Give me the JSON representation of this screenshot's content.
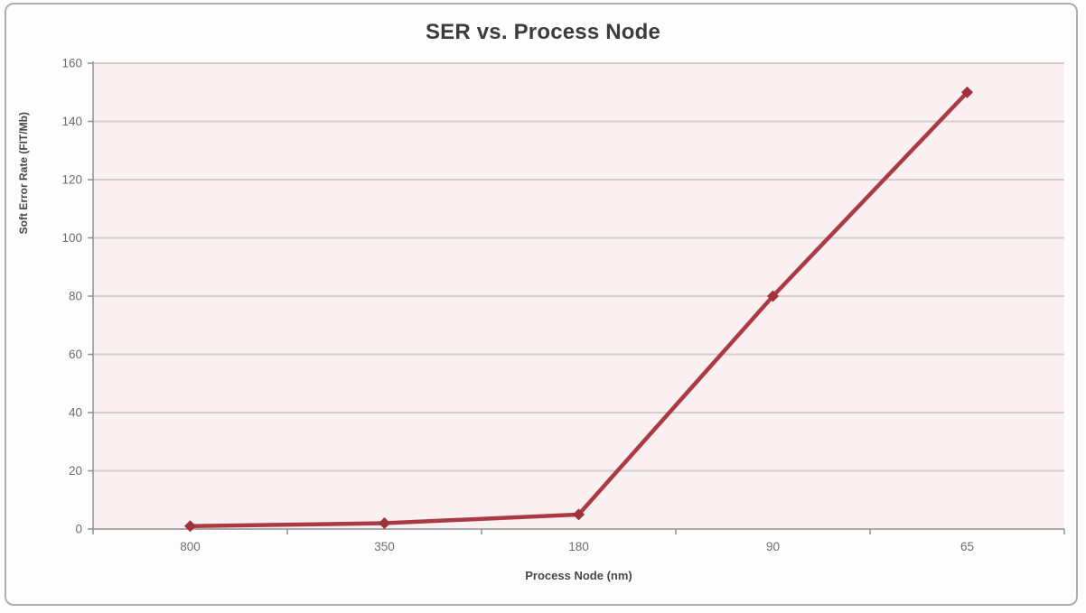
{
  "page": {
    "background": "#fdfdfd",
    "frame_border_color": "#aeaeae"
  },
  "chart_data": {
    "type": "line",
    "title": "SER vs. Process Node",
    "xlabel": "Process Node (nm)",
    "ylabel": "Soft Error Rate (FIT/Mb)",
    "categories": [
      "800",
      "350",
      "180",
      "90",
      "65"
    ],
    "series": [
      {
        "name": "SER",
        "values": [
          1,
          2,
          5,
          80,
          150
        ]
      }
    ],
    "ylim": [
      0,
      160
    ],
    "yticks": [
      0,
      20,
      40,
      60,
      80,
      100,
      120,
      140,
      160
    ],
    "grid": "horizontal",
    "legend_position": "none",
    "marker": "diamond",
    "colors": {
      "line": "#ab3a44",
      "marker": "#a13039",
      "plot_background": "#faf0f1",
      "gridline": "#d4cccd",
      "axis": "#8f8f8f",
      "title_text": "#3c3c3c",
      "tick_text": "#6d6d6d",
      "axis_label_text": "#474747"
    }
  }
}
